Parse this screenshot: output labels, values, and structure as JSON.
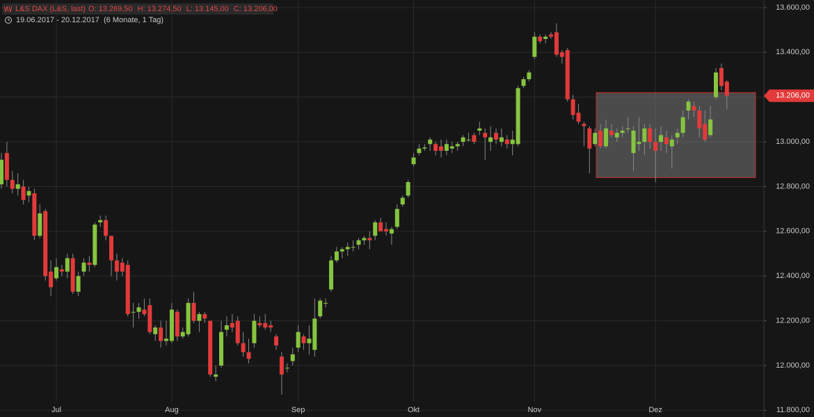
{
  "chart_data": {
    "type": "candlestick",
    "title": "L&S DAX (L&S, last)",
    "header_values": [
      "O: 13.269,50",
      "H: 13.274,50",
      "L: 13.145,00",
      "C: 13.206,00"
    ],
    "date_range": "19.06.2017 - 20.12.2017",
    "period": "(6 Monate, 1 Tag)",
    "last_price": {
      "value": 13206,
      "label": "13.206,00"
    },
    "up_color": "#86c43f",
    "down_color": "#e23a3a",
    "ylim": [
      11770,
      13634
    ],
    "yticks": [
      {
        "value": 11800,
        "label": "11.800,00"
      },
      {
        "value": 12000,
        "label": "12.000,00"
      },
      {
        "value": 12200,
        "label": "12.200,00"
      },
      {
        "value": 12400,
        "label": "12.400,00"
      },
      {
        "value": 12600,
        "label": "12.600,00"
      },
      {
        "value": 12800,
        "label": "12.800,00"
      },
      {
        "value": 13000,
        "label": "13.000,00"
      },
      {
        "value": 13200,
        "label": "13.200,00"
      },
      {
        "value": 13400,
        "label": "13.400,00"
      },
      {
        "value": 13600,
        "label": "13.600,00"
      }
    ],
    "grid": true,
    "range_box": [
      12840,
      13220
    ],
    "categories": [
      null,
      null,
      null,
      null,
      null,
      null,
      null,
      null,
      null,
      null,
      "Jul",
      null,
      null,
      null,
      null,
      null,
      null,
      null,
      null,
      null,
      null,
      null,
      null,
      null,
      null,
      null,
      null,
      null,
      null,
      null,
      null,
      "Aug",
      null,
      null,
      null,
      null,
      null,
      null,
      null,
      null,
      null,
      null,
      null,
      null,
      null,
      null,
      null,
      null,
      null,
      null,
      null,
      null,
      null,
      null,
      "Sep",
      null,
      null,
      null,
      null,
      null,
      null,
      null,
      null,
      null,
      null,
      null,
      null,
      null,
      null,
      null,
      null,
      null,
      null,
      null,
      null,
      "Okt",
      null,
      null,
      null,
      null,
      null,
      null,
      null,
      null,
      null,
      null,
      null,
      null,
      null,
      null,
      null,
      null,
      null,
      null,
      null,
      null,
      null,
      "Nov",
      null,
      null,
      null,
      null,
      null,
      null,
      null,
      null,
      null,
      null,
      null,
      null,
      null,
      null,
      null,
      null,
      null,
      null,
      null,
      null,
      null,
      "Dez",
      null,
      null,
      null,
      null,
      null,
      null,
      null,
      null,
      null,
      null,
      null,
      null,
      null
    ],
    "open": [
      12810,
      12950,
      12830,
      12790,
      12800,
      12760,
      12770,
      12580,
      12690,
      12420,
      12390,
      12430,
      12420,
      12480,
      12330,
      12420,
      12460,
      12450,
      12640,
      12650,
      12580,
      12470,
      12460,
      12450,
      12240,
      12240,
      12250,
      12270,
      12140,
      12170,
      12110,
      12110,
      12240,
      12130,
      12140,
      12280,
      12200,
      12230,
      12200,
      11950,
      12000,
      12160,
      12190,
      12200,
      12100,
      12060,
      12100,
      12190,
      12190,
      12180,
      12130,
      12040,
      11990,
      12020,
      12080,
      12130,
      12100,
      12070,
      12220,
      12280,
      12340,
      12470,
      12510,
      12520,
      12530,
      12540,
      12560,
      12570,
      12580,
      12640,
      12610,
      12590,
      12620,
      12720,
      12760,
      12900,
      12950,
      12970,
      12990,
      12990,
      12980,
      12960,
      12970,
      12980,
      13000,
      13010,
      13030,
      13050,
      13040,
      13000,
      13040,
      13000,
      13010,
      12990,
      12990,
      13250,
      13280,
      13380,
      13470,
      13460,
      13480,
      13490,
      13400,
      13410,
      13190,
      13130,
      13080,
      13060,
      12990,
      13050,
      12980,
      13050,
      13020,
      13040,
      13060,
      12950,
      12990,
      13000,
      13060,
      13000,
      13000,
      13020,
      12980,
      13020,
      13040,
      13140,
      13160,
      13140,
      13080,
      13030,
      13200,
      13330,
      13269.5
    ],
    "high": [
      12950,
      13000,
      12870,
      12860,
      12830,
      12800,
      12790,
      12720,
      12700,
      12470,
      12480,
      12450,
      12500,
      12500,
      12420,
      12480,
      12490,
      12640,
      12670,
      12670,
      12580,
      12500,
      12480,
      12470,
      12280,
      12280,
      12300,
      12300,
      12180,
      12200,
      12200,
      12280,
      12250,
      12170,
      12300,
      12330,
      12240,
      12240,
      12200,
      12000,
      12200,
      12220,
      12230,
      12220,
      12150,
      12120,
      12230,
      12220,
      12230,
      12200,
      12140,
      12060,
      12010,
      12080,
      12180,
      12140,
      12180,
      12300,
      12300,
      12300,
      12490,
      12530,
      12530,
      12550,
      12560,
      12570,
      12580,
      12600,
      12650,
      12660,
      12640,
      12620,
      12720,
      12760,
      12830,
      12950,
      12990,
      12990,
      13020,
      13000,
      13010,
      13010,
      13000,
      13000,
      13030,
      13040,
      13040,
      13090,
      13060,
      13070,
      13060,
      13060,
      13030,
      13050,
      13250,
      13290,
      13320,
      13490,
      13480,
      13480,
      13490,
      13530,
      13410,
      13420,
      13210,
      13170,
      13090,
      13070,
      13060,
      13080,
      13100,
      13080,
      13060,
      13070,
      13110,
      13070,
      13110,
      13080,
      13080,
      13060,
      13070,
      13050,
      13030,
      13060,
      13140,
      13190,
      13180,
      13160,
      13140,
      13160,
      13330,
      13350,
      13274.5
    ],
    "low": [
      12790,
      12800,
      12770,
      12760,
      12720,
      12730,
      12560,
      12570,
      12380,
      12310,
      12380,
      12400,
      12390,
      12320,
      12310,
      12400,
      12420,
      12440,
      12620,
      12560,
      12400,
      12380,
      12400,
      12220,
      12170,
      12210,
      12220,
      12140,
      12110,
      12080,
      12090,
      12100,
      12110,
      12120,
      12130,
      12190,
      12150,
      12190,
      11950,
      11930,
      11990,
      12130,
      12150,
      12090,
      12040,
      12010,
      12080,
      12170,
      12160,
      12150,
      12070,
      11870,
      11970,
      12000,
      12060,
      12070,
      12050,
      12040,
      12210,
      12260,
      12330,
      12460,
      12480,
      12490,
      12510,
      12520,
      12540,
      12520,
      12560,
      12600,
      12580,
      12540,
      12610,
      12710,
      12750,
      12890,
      12940,
      12960,
      12960,
      12940,
      12930,
      12940,
      12950,
      12960,
      12980,
      13000,
      12990,
      13030,
      12920,
      12960,
      12990,
      12980,
      12970,
      12940,
      12980,
      13240,
      13270,
      13370,
      13440,
      13440,
      13460,
      13380,
      13350,
      13180,
      13100,
      13080,
      12980,
      12860,
      12980,
      12970,
      12970,
      13020,
      13000,
      13020,
      13040,
      12870,
      12960,
      12940,
      12970,
      12820,
      12960,
      12950,
      12880,
      12990,
      13020,
      13100,
      13110,
      13020,
      13000,
      13020,
      13190,
      13230,
      13145
    ],
    "close": [
      12920,
      12830,
      12790,
      12810,
      12740,
      12780,
      12580,
      12680,
      12400,
      12350,
      12440,
      12420,
      12480,
      12330,
      12400,
      12460,
      12450,
      12630,
      12650,
      12580,
      12470,
      12420,
      12420,
      12230,
      12240,
      12260,
      12230,
      12150,
      12170,
      12110,
      12120,
      12250,
      12130,
      12150,
      12280,
      12200,
      12230,
      12210,
      11960,
      11960,
      12150,
      12180,
      12170,
      12100,
      12060,
      12030,
      12200,
      12180,
      12170,
      12170,
      12090,
      11960,
      11990,
      12050,
      12150,
      12100,
      12120,
      12210,
      12290,
      12280,
      12470,
      12510,
      12520,
      12530,
      12530,
      12560,
      12570,
      12560,
      12640,
      12600,
      12600,
      12610,
      12700,
      12750,
      12820,
      12930,
      12970,
      12975,
      13010,
      12960,
      12960,
      12990,
      12980,
      12990,
      13020,
      13010,
      13000,
      13060,
      13020,
      13020,
      13010,
      13020,
      12990,
      13010,
      13240,
      13280,
      13310,
      13470,
      13450,
      13470,
      13470,
      13390,
      13380,
      13190,
      13120,
      13090,
      13070,
      12970,
      13040,
      12980,
      13060,
      13030,
      13040,
      13050,
      13060,
      13050,
      13000,
      13060,
      13000,
      12960,
      13030,
      12990,
      13010,
      13040,
      13110,
      13180,
      13140,
      13060,
      13010,
      13100,
      13310,
      13250,
      13206
    ]
  }
}
